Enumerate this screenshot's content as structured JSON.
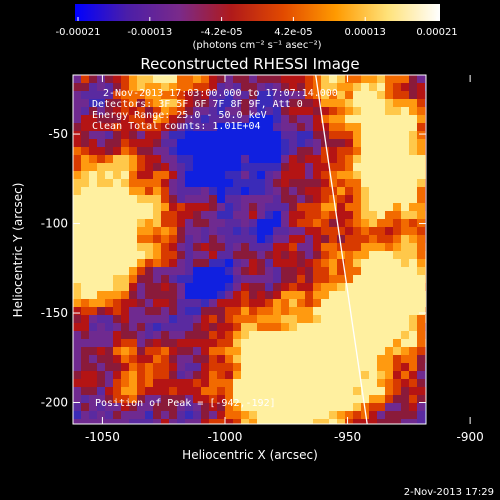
{
  "colorbar": {
    "tick_labels": [
      "-0.00021",
      "-0.00013",
      "-4.2e-05",
      "4.2e-05",
      "0.00013",
      "0.00021"
    ],
    "unit": "(photons cm⁻² s⁻¹ asec⁻²)",
    "stops": [
      "#0000ff",
      "#4b1ea8",
      "#7a2a8a",
      "#b01a1a",
      "#e24a00",
      "#ff9a00",
      "#ffe27a",
      "#ffffff"
    ]
  },
  "chart_data": {
    "type": "heatmap",
    "title": "Reconstructed RHESSI Image",
    "xlabel": "Heliocentric X (arcsec)",
    "ylabel": "Heliocentric Y (arcsec)",
    "xlim": [
      -1062,
      -918
    ],
    "ylim": [
      -212,
      -17
    ],
    "x_ticks": [
      -1050,
      -1000,
      -950,
      -900
    ],
    "y_ticks": [
      -50,
      -100,
      -150,
      -200
    ],
    "annotations": [
      "2-Nov-2013 17:03:00.000 to 17:07:14.000",
      "Detectors: 3F 5F 6F 7F 8F 9F, Att 0",
      "Energy Range: 25.0 - 50.0 keV",
      "Clean     Total counts: 1.01E+04"
    ],
    "peak_text": "Position of Peak = [-942,-192]",
    "peak": [
      -942,
      -192
    ],
    "limb_line": [
      [
        -963,
        -17
      ],
      [
        -942,
        -212
      ]
    ]
  },
  "footer": {
    "timestamp": "2-Nov-2013 17:29"
  }
}
